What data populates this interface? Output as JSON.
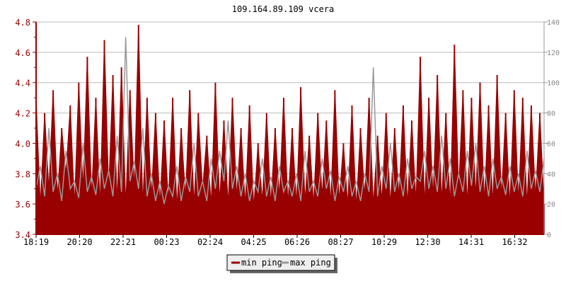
{
  "chart_data": {
    "type": "line",
    "title": "109.164.89.109 vcera",
    "x_tick_labels": [
      "18:19",
      "20:20",
      "22:21",
      "00:23",
      "02:24",
      "04:25",
      "06:26",
      "08:27",
      "10:29",
      "12:30",
      "14:31",
      "16:32"
    ],
    "y_left": {
      "range": [
        3.4,
        4.8
      ],
      "ticks": [
        "3.4",
        "3.6",
        "3.8",
        "4.0",
        "4.2",
        "4.4",
        "4.6",
        "4.8"
      ]
    },
    "y_right": {
      "range": [
        0,
        140
      ],
      "ticks": [
        "0",
        "20",
        "40",
        "60",
        "80",
        "100",
        "120",
        "140"
      ]
    },
    "grid": true,
    "legend_placement": "bottom",
    "series": [
      {
        "name": "min ping",
        "axis": "left",
        "color": "#990000",
        "values": [
          4.3,
          3.6,
          4.2,
          3.7,
          4.35,
          3.65,
          4.1,
          3.8,
          4.25,
          3.6,
          4.4,
          3.7,
          4.57,
          3.65,
          4.3,
          3.6,
          4.68,
          3.7,
          4.45,
          3.62,
          4.5,
          3.6,
          4.35,
          3.7,
          4.78,
          3.6,
          4.3,
          3.65,
          4.2,
          3.6,
          4.15,
          3.62,
          4.3,
          3.58,
          4.1,
          3.65,
          4.35,
          3.6,
          4.2,
          3.7,
          4.05,
          3.6,
          4.4,
          3.62,
          4.15,
          3.6,
          4.3,
          3.65,
          4.1,
          3.6,
          4.25,
          3.58,
          4.0,
          3.62,
          4.2,
          3.6,
          4.1,
          3.65,
          4.3,
          3.6,
          4.1,
          3.6,
          4.37,
          3.62,
          4.05,
          3.6,
          4.2,
          3.65,
          4.15,
          3.6,
          4.35,
          3.62,
          4.0,
          3.6,
          4.25,
          3.58,
          4.1,
          3.65,
          4.3,
          3.6,
          4.05,
          3.62,
          4.2,
          3.6,
          4.1,
          3.65,
          4.25,
          3.6,
          4.15,
          3.62,
          4.57,
          3.6,
          4.3,
          3.65,
          4.45,
          3.62,
          4.2,
          3.6,
          4.65,
          3.7,
          4.35,
          3.6,
          4.3,
          3.65,
          4.4,
          3.62,
          4.25,
          3.6,
          4.45,
          3.65,
          4.2,
          3.6,
          4.35,
          3.62,
          4.3,
          3.6,
          4.25,
          3.65,
          4.2,
          3.6
        ]
      },
      {
        "name": "max ping",
        "axis": "right",
        "color": "#999999",
        "values": [
          30,
          45,
          25,
          70,
          28,
          40,
          22,
          55,
          30,
          35,
          24,
          60,
          28,
          38,
          26,
          50,
          30,
          42,
          25,
          65,
          28,
          130,
          35,
          48,
          30,
          70,
          25,
          40,
          22,
          35,
          20,
          32,
          25,
          45,
          22,
          38,
          28,
          60,
          25,
          35,
          22,
          50,
          30,
          55,
          35,
          75,
          30,
          45,
          25,
          40,
          22,
          35,
          28,
          50,
          25,
          38,
          22,
          45,
          28,
          35,
          25,
          40,
          22,
          55,
          28,
          35,
          25,
          50,
          30,
          42,
          22,
          38,
          28,
          45,
          25,
          35,
          22,
          40,
          28,
          110,
          25,
          45,
          30,
          60,
          28,
          40,
          25,
          50,
          30,
          38,
          35,
          55,
          30,
          45,
          28,
          65,
          30,
          50,
          25,
          40,
          28,
          55,
          32,
          60,
          28,
          45,
          25,
          50,
          30,
          38,
          26,
          45,
          28,
          40,
          25,
          55,
          30,
          42,
          28,
          50
        ]
      }
    ]
  }
}
